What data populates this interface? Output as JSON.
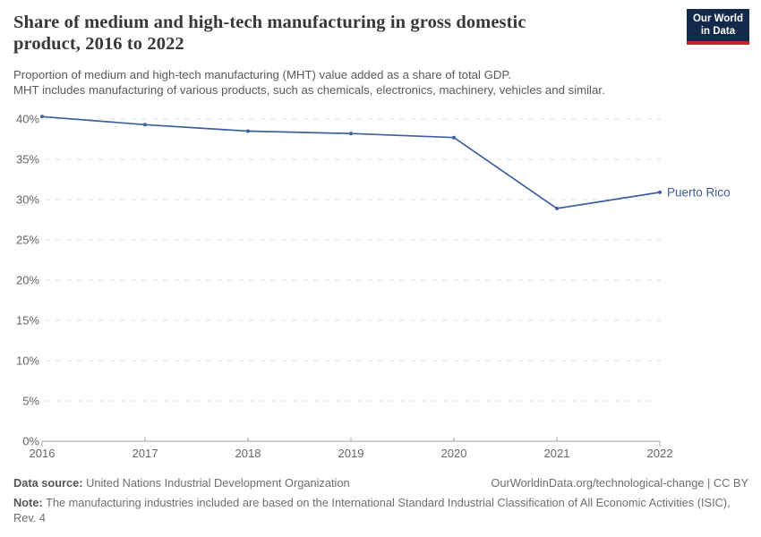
{
  "header": {
    "title": "Share of medium and high-tech manufacturing in gross domestic product, 2016 to 2022",
    "subtitle_line1": "Proportion of medium and high-tech manufacturing (MHT) value added as a share of total GDP.",
    "subtitle_line2": "MHT includes manufacturing of various products, such as chemicals, electronics, machinery, vehicles and similar.",
    "logo": {
      "line1": "Our World",
      "line2": "in Data"
    }
  },
  "chart_data": {
    "type": "line",
    "title": "Share of medium and high-tech manufacturing in gross domestic product, 2016 to 2022",
    "x": [
      2016,
      2017,
      2018,
      2019,
      2020,
      2021,
      2022
    ],
    "series": [
      {
        "name": "Puerto Rico",
        "values": [
          40.3,
          39.3,
          38.5,
          38.2,
          37.7,
          28.9,
          30.9
        ],
        "color": "#3e5e9e"
      }
    ],
    "end_label": "Puerto Rico",
    "xlabel": "",
    "ylabel": "",
    "ylim": [
      0,
      40
    ],
    "y_tick_step": 5,
    "y_tick_suffix": "%",
    "grid": "horizontal-dashed",
    "legend_position": "end-of-line"
  },
  "colors": {
    "line": "#3e5e9e",
    "grid": "#e2e2e2",
    "axis": "#a3a3a3",
    "tick_text": "#666666",
    "logo_bg": "#122949",
    "logo_red": "#c82326"
  },
  "footer": {
    "datasource_label": "Data source:",
    "datasource_text": " United Nations Industrial Development Organization",
    "link": "OurWorldinData.org/technological-change | CC BY",
    "note_label": "Note:",
    "note_text": " The manufacturing industries included are based on the International Standard Industrial Classification of All Economic Activities (ISIC), Rev. 4"
  }
}
